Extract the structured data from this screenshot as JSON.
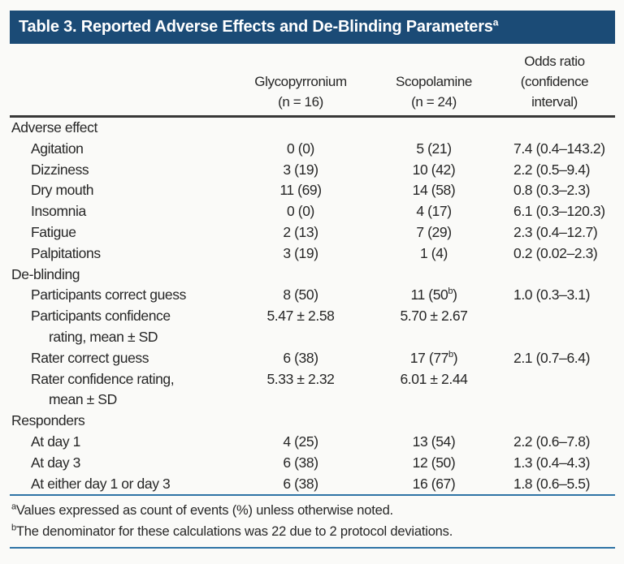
{
  "title": {
    "text": "Table 3. Reported Adverse Effects and De-Blinding Parameters",
    "superscript": "a"
  },
  "columns": {
    "label": "",
    "glycopyrronium": "Glycopyrronium\n(n = 16)",
    "scopolamine": "Scopolamine\n(n = 24)",
    "odds_ratio": "Odds ratio\n(confidence\ninterval)"
  },
  "table": {
    "sections": [
      {
        "header": "Adverse effect",
        "rows": [
          {
            "label": "Agitation",
            "glycopyrronium": "0 (0)",
            "scopolamine": "5 (21)",
            "odds_ratio": "7.4 (0.4–143.2)"
          },
          {
            "label": "Dizziness",
            "glycopyrronium": "3 (19)",
            "scopolamine": "10 (42)",
            "odds_ratio": "2.2 (0.5–9.4)"
          },
          {
            "label": "Dry mouth",
            "glycopyrronium": "11 (69)",
            "scopolamine": "14 (58)",
            "odds_ratio": "0.8 (0.3–2.3)"
          },
          {
            "label": "Insomnia",
            "glycopyrronium": "0 (0)",
            "scopolamine": "4 (17)",
            "odds_ratio": "6.1 (0.3–120.3)"
          },
          {
            "label": "Fatigue",
            "glycopyrronium": "2 (13)",
            "scopolamine": "7 (29)",
            "odds_ratio": "2.3 (0.4–12.7)"
          },
          {
            "label": "Palpitations",
            "glycopyrronium": "3 (19)",
            "scopolamine": "1 (4)",
            "odds_ratio": "0.2 (0.02–2.3)"
          }
        ]
      },
      {
        "header": "De-blinding",
        "rows": [
          {
            "label": "Participants correct guess",
            "glycopyrronium": "8 (50)",
            "scopolamine": "11 (50^b)",
            "odds_ratio": "1.0 (0.3–3.1)"
          },
          {
            "label": "Participants confidence\nrating, mean ± SD",
            "glycopyrronium": "5.47 ± 2.58",
            "scopolamine": "5.70 ± 2.67",
            "odds_ratio": ""
          },
          {
            "label": "Rater correct guess",
            "glycopyrronium": "6 (38)",
            "scopolamine": "17 (77^b)",
            "odds_ratio": "2.1 (0.7–6.4)"
          },
          {
            "label": "Rater confidence rating,\nmean ± SD",
            "glycopyrronium": "5.33 ± 2.32",
            "scopolamine": "6.01 ± 2.44",
            "odds_ratio": ""
          }
        ]
      },
      {
        "header": "Responders",
        "rows": [
          {
            "label": "At day 1",
            "glycopyrronium": "4 (25)",
            "scopolamine": "13 (54)",
            "odds_ratio": "2.2 (0.6–7.8)"
          },
          {
            "label": "At day 3",
            "glycopyrronium": "6 (38)",
            "scopolamine": "12 (50)",
            "odds_ratio": "1.3 (0.4–4.3)"
          },
          {
            "label": "At either day 1 or day 3",
            "glycopyrronium": "6 (38)",
            "scopolamine": "16 (67)",
            "odds_ratio": "1.8 (0.6–5.5)"
          }
        ]
      }
    ]
  },
  "footnotes": [
    {
      "marker": "a",
      "text": "Values expressed as count of events (%) unless otherwise noted."
    },
    {
      "marker": "b",
      "text": "The denominator for these calculations was 22 due to 2 protocol deviations."
    }
  ],
  "colors": {
    "header_bar": "#1b4b76",
    "rule_blue": "#2e73a5",
    "rule_dark": "#383838",
    "text": "#262626",
    "background": "#fafaf8"
  }
}
